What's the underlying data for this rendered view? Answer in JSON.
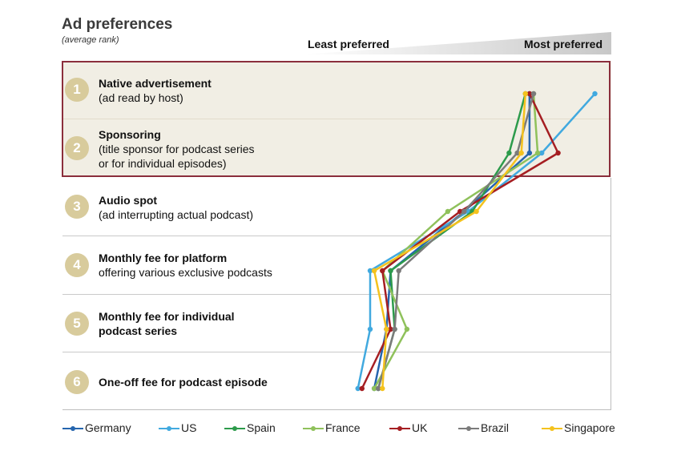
{
  "title": "Ad preferences",
  "subtitle": "(average rank)",
  "scale_left_label": "Least preferred",
  "scale_right_label": "Most preferred",
  "ranks": [
    {
      "num": "1",
      "name": "Native advertisement",
      "desc": "(ad read by host)"
    },
    {
      "num": "2",
      "name": "Sponsoring",
      "desc": "(title sponsor for podcast series\nor for individual episodes)"
    },
    {
      "num": "3",
      "name": "Audio spot",
      "desc": "(ad interrupting actual podcast)"
    },
    {
      "num": "4",
      "name": "Monthly fee for platform",
      "desc": "offering various exclusive podcasts"
    },
    {
      "num": "5",
      "name": "Monthly fee for individual\npodcast series",
      "desc": ""
    },
    {
      "num": "6",
      "name": "One-off fee for podcast episode",
      "desc": ""
    }
  ],
  "chart_data": {
    "type": "line",
    "orientation": "horizontal-value vertical-category",
    "title": "Ad preferences",
    "subtitle": "(average rank)",
    "categories": [
      "Native advertisement",
      "Sponsoring",
      "Audio spot",
      "Monthly fee for platform",
      "Monthly fee for individual podcast series",
      "One-off fee for podcast episode"
    ],
    "scale": "relative preference (Least preferred to Most preferred)",
    "xlim": [
      0,
      100
    ],
    "series": [
      {
        "name": "Germany",
        "color": "#2565ae",
        "values": [
          79,
          79,
          63,
          45,
          44,
          41
        ]
      },
      {
        "name": "US",
        "color": "#41a9df",
        "values": [
          95,
          82,
          64,
          40,
          40,
          37
        ]
      },
      {
        "name": "Spain",
        "color": "#2d9b4b",
        "values": [
          78,
          74,
          65,
          45,
          46,
          42
        ]
      },
      {
        "name": "France",
        "color": "#8fc15b",
        "values": [
          80,
          81,
          59,
          43,
          49,
          41
        ]
      },
      {
        "name": "UK",
        "color": "#a51e22",
        "values": [
          79,
          86,
          62,
          43,
          45,
          38
        ]
      },
      {
        "name": "Brazil",
        "color": "#7b7b7b",
        "values": [
          80,
          76,
          63,
          47,
          46,
          42
        ]
      },
      {
        "name": "Singapore",
        "color": "#f4c21d",
        "values": [
          78,
          77,
          66,
          41,
          44,
          43
        ]
      }
    ]
  }
}
